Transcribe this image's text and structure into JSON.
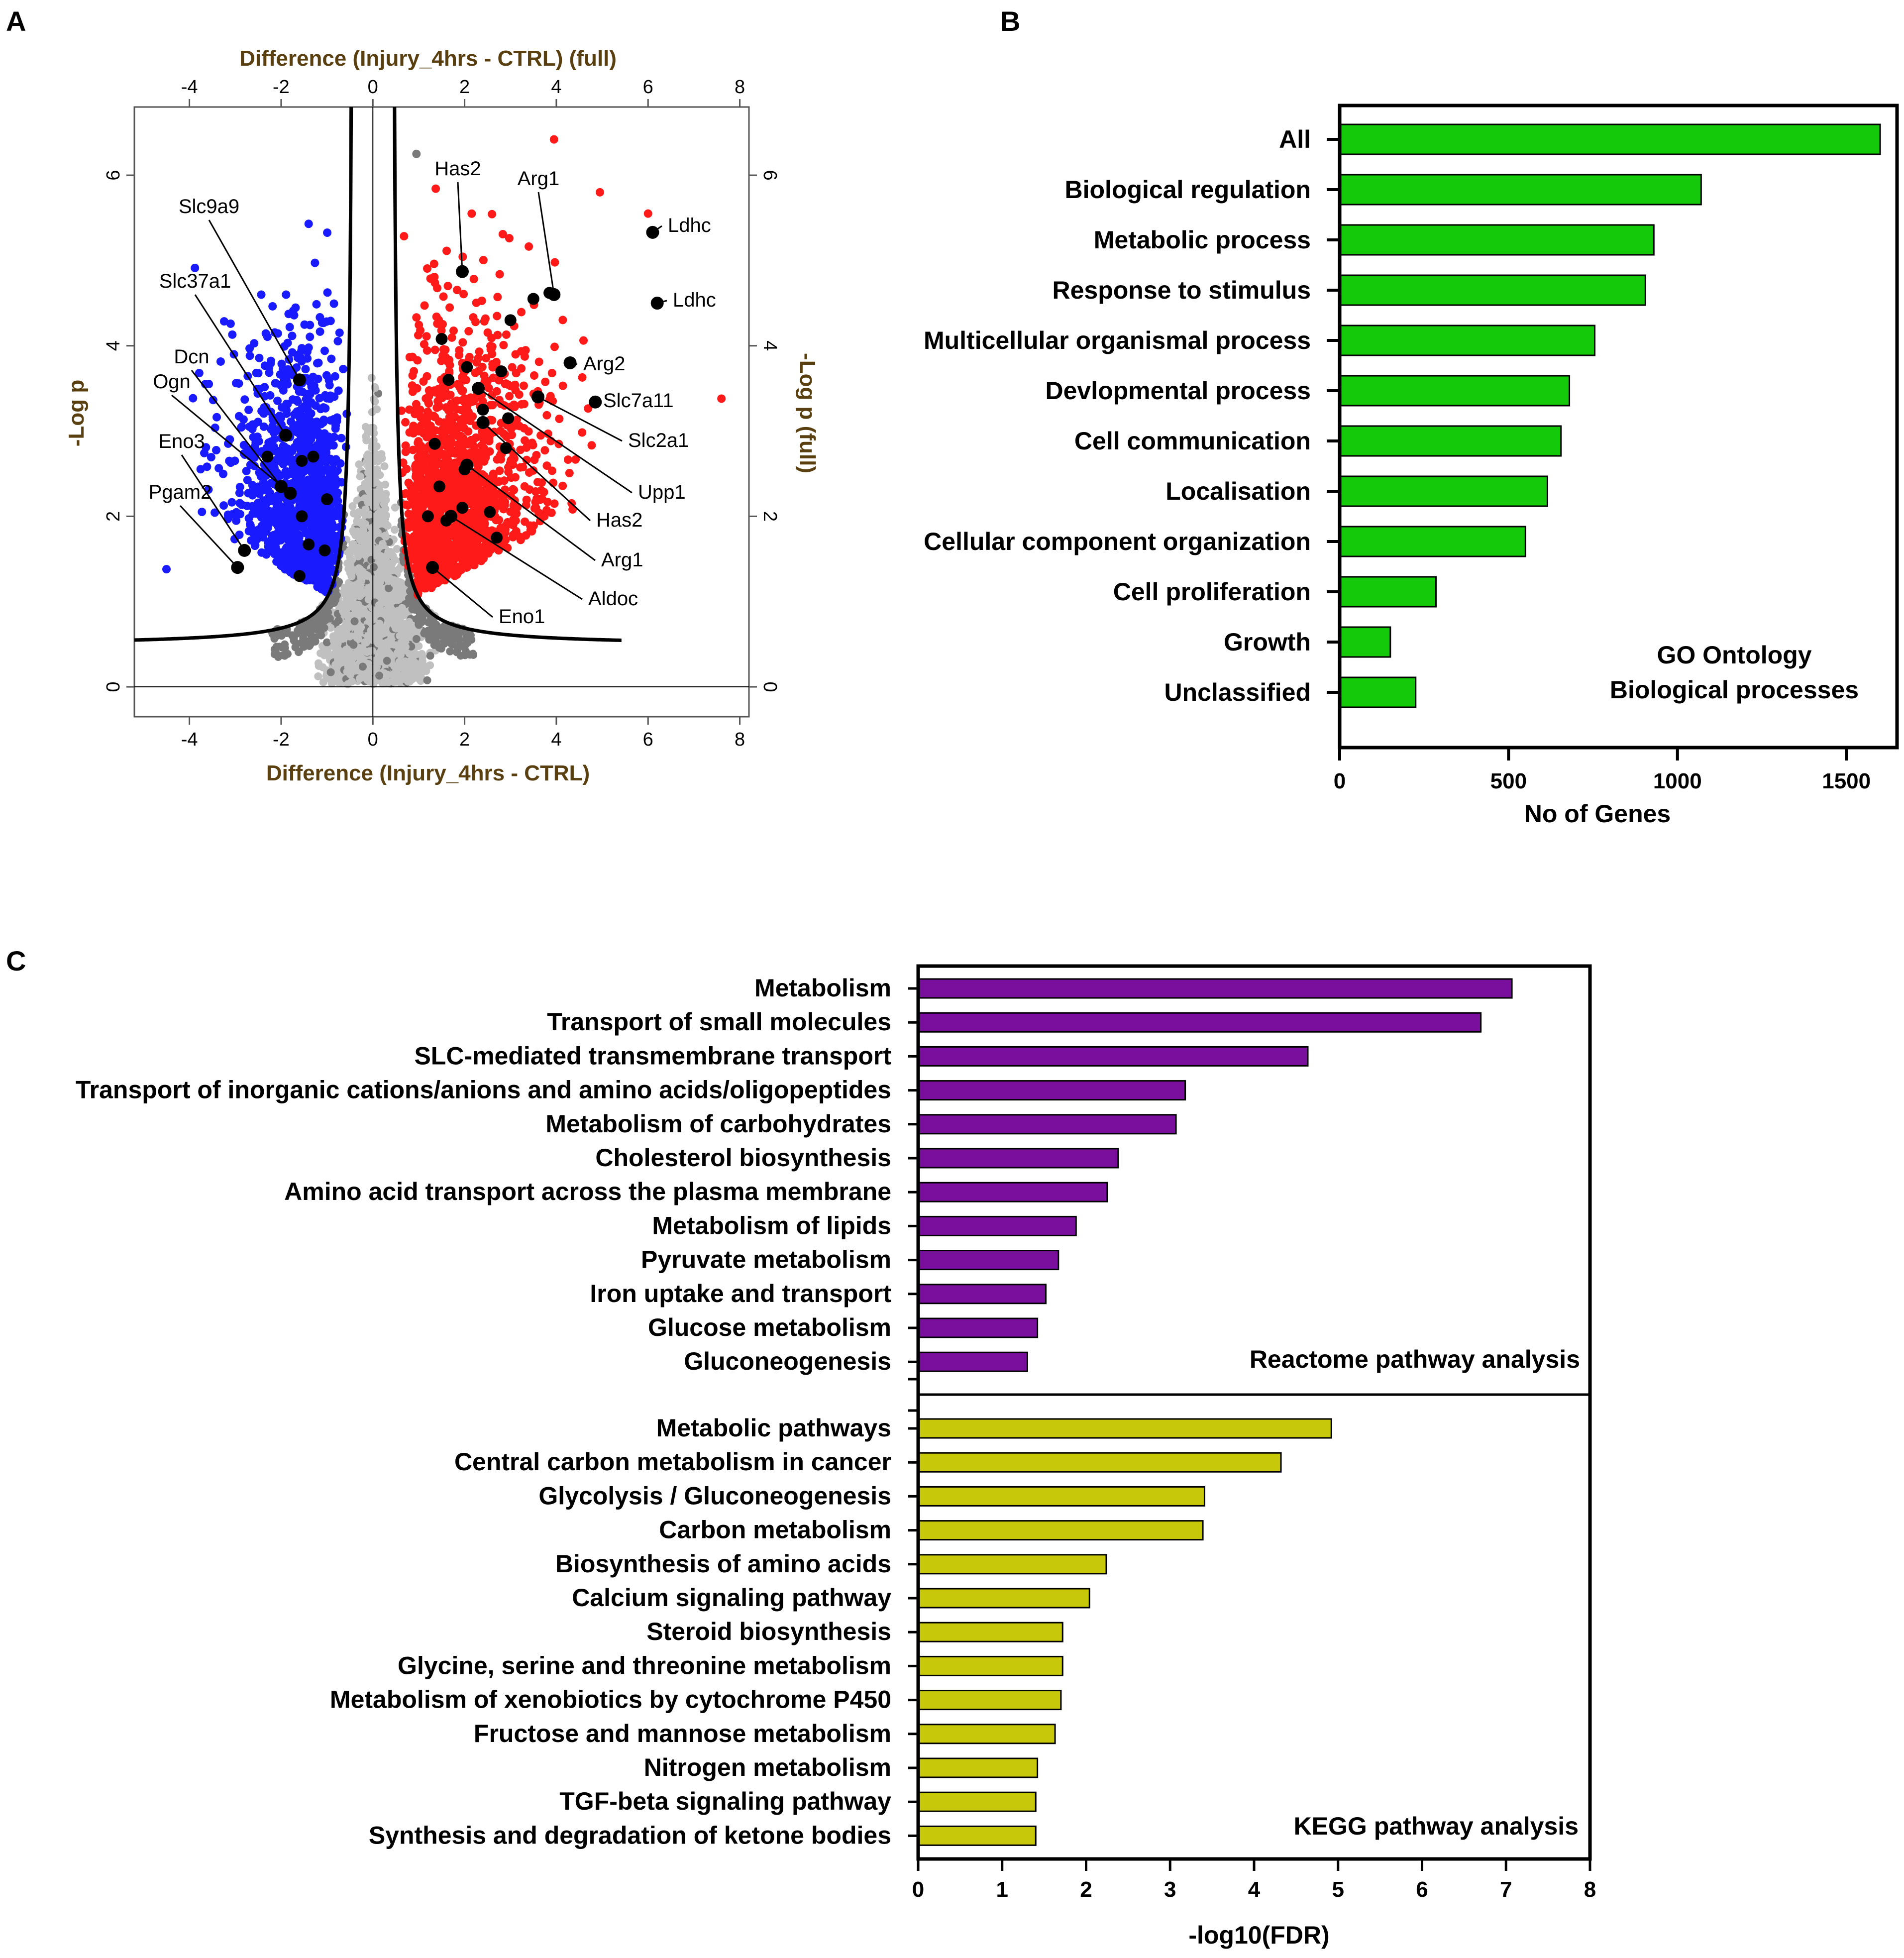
{
  "panels": {
    "a": "A",
    "b": "B",
    "c": "C"
  },
  "chart_data": [
    {
      "id": "A",
      "type": "scatter",
      "title": "",
      "xlabel": "Difference (Injury_4hrs - CTRL)",
      "xlabel_top": "Difference (Injury_4hrs - CTRL) (full)",
      "ylabel": "-Log p",
      "ylabel_right": "-Log p (full)",
      "xlim": [
        -5.2,
        8.2
      ],
      "ylim": [
        -0.35,
        6.8
      ],
      "x_ticks": [
        -4,
        -2,
        0,
        2,
        4,
        6,
        8
      ],
      "y_ticks": [
        0,
        2,
        4,
        6
      ],
      "colors": {
        "down": "#1a1aff",
        "up": "#ff1a1a",
        "ns": "#c0c0c0",
        "ns_dark": "#7a7a7a",
        "highlight": "#000000",
        "curve": "#000000"
      },
      "significance_curve": {
        "s0": 0.42,
        "c": 0.33,
        "baseline": 0.48
      },
      "annotated_points": [
        {
          "label": "Has2",
          "x": 1.95,
          "y": 4.87
        },
        {
          "label": "Arg1",
          "x": 3.95,
          "y": 4.6
        },
        {
          "label": "Ldhc",
          "x": 6.1,
          "y": 5.33
        },
        {
          "label": "Ldhc",
          "x": 6.2,
          "y": 4.5
        },
        {
          "label": "Arg2",
          "x": 4.3,
          "y": 3.8
        },
        {
          "label": "Slc7a11",
          "x": 4.85,
          "y": 3.34
        },
        {
          "label": "Slc2a1",
          "x": 3.6,
          "y": 3.4
        },
        {
          "label": "Upp1",
          "x": 2.3,
          "y": 3.5
        },
        {
          "label": "Has2",
          "x": 2.4,
          "y": 3.1
        },
        {
          "label": "Arg1",
          "x": 2.05,
          "y": 2.6
        },
        {
          "label": "Aldoc",
          "x": 1.7,
          "y": 2.0
        },
        {
          "label": "Eno1",
          "x": 1.3,
          "y": 1.4
        },
        {
          "label": "Slc9a9",
          "x": -1.6,
          "y": 3.6
        },
        {
          "label": "Slc37a1",
          "x": -1.9,
          "y": 2.95
        },
        {
          "label": "Dcn",
          "x": -2.0,
          "y": 2.35
        },
        {
          "label": "Ogn",
          "x": -1.8,
          "y": 2.27
        },
        {
          "label": "Eno3",
          "x": -2.8,
          "y": 1.6
        },
        {
          "label": "Pgam2",
          "x": -2.95,
          "y": 1.4
        }
      ],
      "extra_significant_points": [
        {
          "x": 3.5,
          "y": 4.55
        },
        {
          "x": 3.85,
          "y": 4.62
        },
        {
          "x": 3.0,
          "y": 4.3
        },
        {
          "x": 2.05,
          "y": 3.75
        },
        {
          "x": 2.8,
          "y": 3.7
        },
        {
          "x": 1.65,
          "y": 3.6
        },
        {
          "x": 2.4,
          "y": 3.25
        },
        {
          "x": 2.95,
          "y": 3.15
        },
        {
          "x": 1.5,
          "y": 4.08
        },
        {
          "x": 1.35,
          "y": 2.85
        },
        {
          "x": 2.0,
          "y": 2.55
        },
        {
          "x": 2.9,
          "y": 2.8
        },
        {
          "x": 1.45,
          "y": 2.35
        },
        {
          "x": 1.95,
          "y": 2.1
        },
        {
          "x": 2.55,
          "y": 2.05
        },
        {
          "x": 1.2,
          "y": 2.0
        },
        {
          "x": 2.7,
          "y": 1.75
        },
        {
          "x": 1.6,
          "y": 1.95
        },
        {
          "x": -1.3,
          "y": 2.7
        },
        {
          "x": -1.55,
          "y": 2.65
        },
        {
          "x": -1.0,
          "y": 2.2
        },
        {
          "x": -1.55,
          "y": 2.0
        },
        {
          "x": -1.4,
          "y": 1.67
        },
        {
          "x": -1.05,
          "y": 1.6
        },
        {
          "x": -1.6,
          "y": 1.3
        },
        {
          "x": -2.3,
          "y": 2.7
        }
      ]
    },
    {
      "id": "B",
      "type": "bar",
      "orientation": "horizontal",
      "title": "",
      "xlabel": "No of Genes",
      "ylabel": "",
      "xlim": [
        0,
        1650
      ],
      "x_ticks": [
        0,
        500,
        1000,
        1500
      ],
      "bar_color": "#14c80a",
      "annotation": [
        "GO Ontology",
        "Biological processes"
      ],
      "categories": [
        "All",
        "Biological regulation",
        "Metabolic process",
        "Response to stimulus",
        "Multicellular organismal process",
        "Devlopmental process",
        "Cell communication",
        "Localisation",
        "Cellular component organization",
        "Cell proliferation",
        "Growth",
        "Unclassified"
      ],
      "values": [
        1600,
        1070,
        930,
        905,
        755,
        680,
        655,
        615,
        550,
        285,
        150,
        225
      ]
    },
    {
      "id": "C",
      "type": "bar",
      "orientation": "horizontal",
      "title": "",
      "xlabel": "-log10(FDR)",
      "ylabel": "",
      "xlim": [
        0,
        8
      ],
      "x_ticks": [
        0,
        1,
        2,
        3,
        4,
        5,
        6,
        7,
        8
      ],
      "series": [
        {
          "name": "Reactome pathway analysis",
          "color": "#7a0f9e",
          "categories": [
            "Metabolism",
            "Transport of small molecules",
            "SLC-mediated transmembrane transport",
            "Transport of inorganic cations/anions and amino acids/oligopeptides",
            "Metabolism of carbohydrates",
            "Cholesterol biosynthesis",
            "Amino acid transport across the plasma membrane",
            "Metabolism of lipids",
            "Pyruvate metabolism",
            "Iron uptake and transport",
            "Glucose metabolism",
            "Gluconeogenesis"
          ],
          "values": [
            7.07,
            6.7,
            4.64,
            3.18,
            3.07,
            2.38,
            2.25,
            1.88,
            1.67,
            1.52,
            1.42,
            1.3
          ]
        },
        {
          "name": "KEGG pathway analysis",
          "color": "#c8c80a",
          "categories": [
            "Metabolic pathways",
            "Central carbon metabolism in cancer",
            "Glycolysis / Gluconeogenesis",
            "Carbon metabolism",
            "Biosynthesis of amino acids",
            "Calcium signaling pathway",
            "Steroid biosynthesis",
            "Glycine, serine and threonine metabolism",
            "Metabolism of xenobiotics by cytochrome P450",
            "Fructose and mannose metabolism",
            "Nitrogen metabolism",
            "TGF-beta signaling pathway",
            "Synthesis and degradation of ketone bodies"
          ],
          "values": [
            4.92,
            4.32,
            3.41,
            3.39,
            2.24,
            2.04,
            1.72,
            1.72,
            1.7,
            1.63,
            1.42,
            1.4,
            1.4
          ]
        }
      ]
    }
  ]
}
